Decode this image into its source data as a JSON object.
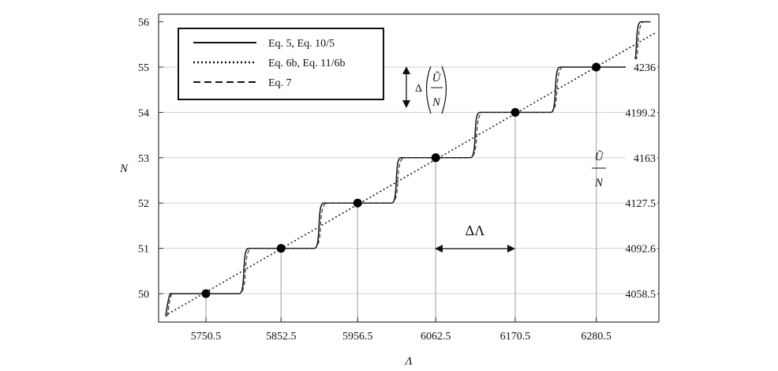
{
  "chart_data": {
    "type": "line",
    "xlabel": "Λ",
    "ylabel": "N",
    "y2label": {
      "numerator": "Ũ",
      "denominator": "N"
    },
    "xlim": [
      5655,
      6345
    ],
    "ylim": [
      49.5,
      56
    ],
    "x_ticks": [
      "5750.5",
      "5852.5",
      "5956.5",
      "6062.5",
      "6170.5",
      "6280.5"
    ],
    "y_ticks": [
      "50",
      "51",
      "52",
      "53",
      "54",
      "55",
      "56"
    ],
    "y2_ticks": [
      "4058.5",
      "4092.6",
      "4127.5",
      "4163",
      "4199.2",
      "4236"
    ],
    "grid": true,
    "legend_position": "top-left",
    "legend": [
      "Eq. 5, Eq. 10/5",
      "Eq. 6b, Eq. 11/6b",
      "Eq. 7"
    ],
    "points": [
      {
        "x": 5750.5,
        "y": 50
      },
      {
        "x": 5852.5,
        "y": 51
      },
      {
        "x": 5956.5,
        "y": 52
      },
      {
        "x": 6062.5,
        "y": 53
      },
      {
        "x": 6170.5,
        "y": 54
      },
      {
        "x": 6280.5,
        "y": 55
      }
    ],
    "step_transitions": [
      5700,
      5802,
      5904,
      6009,
      6116,
      6225,
      6335
    ],
    "annotations": {
      "delta_lambda": "ΔΛ",
      "delta_u": "Δ"
    }
  }
}
